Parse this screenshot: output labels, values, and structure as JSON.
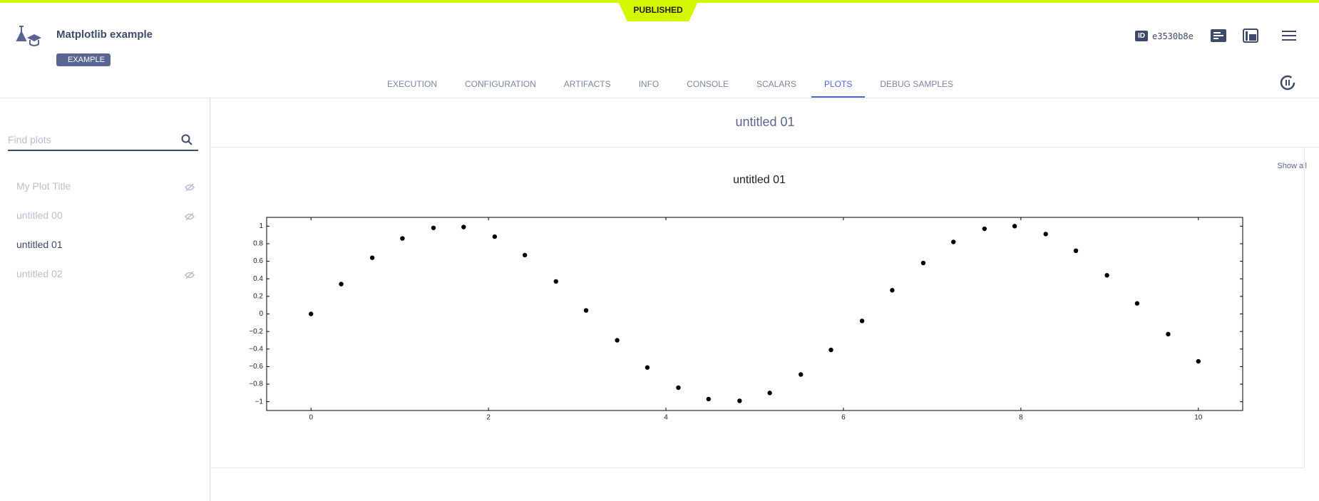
{
  "header": {
    "status": "PUBLISHED",
    "title": "Matplotlib example",
    "tag": "EXAMPLE",
    "id_label": "ID",
    "id": "e3530b8e"
  },
  "tabs": [
    "EXECUTION",
    "CONFIGURATION",
    "ARTIFACTS",
    "INFO",
    "CONSOLE",
    "SCALARS",
    "PLOTS",
    "DEBUG SAMPLES"
  ],
  "active_tab": 6,
  "sidebar": {
    "search_placeholder": "Find plots",
    "show_all": "Show all",
    "plots": [
      {
        "label": "My Plot Title",
        "hidden": true
      },
      {
        "label": "untitled 00",
        "hidden": true
      },
      {
        "label": "untitled 01",
        "hidden": false
      },
      {
        "label": "untitled 02",
        "hidden": true
      }
    ]
  },
  "panel": {
    "title": "untitled 01"
  },
  "chart_data": {
    "type": "scatter",
    "title": "untitled 01",
    "color": "#000000",
    "x": [
      0,
      0.34,
      0.69,
      1.03,
      1.38,
      1.72,
      2.07,
      2.41,
      2.76,
      3.1,
      3.45,
      3.79,
      4.14,
      4.48,
      4.83,
      5.17,
      5.52,
      5.86,
      6.21,
      6.55,
      6.9,
      7.24,
      7.59,
      7.93,
      8.28,
      8.62,
      8.97,
      9.31,
      9.66,
      10
    ],
    "values": [
      0,
      0.34,
      0.64,
      0.86,
      0.98,
      0.99,
      0.88,
      0.67,
      0.37,
      0.04,
      -0.3,
      -0.61,
      -0.84,
      -0.97,
      -0.99,
      -0.9,
      -0.69,
      -0.41,
      -0.08,
      0.27,
      0.58,
      0.82,
      0.97,
      1.0,
      0.91,
      0.72,
      0.44,
      0.12,
      -0.23,
      -0.54
    ],
    "xlim": [
      -0.5,
      10.5
    ],
    "ylim": [
      -1.1,
      1.1
    ],
    "xticks": [
      0,
      2,
      4,
      6,
      8,
      10
    ],
    "yticks": [
      {
        "value": -1,
        "label": "−1"
      },
      {
        "value": -0.8,
        "label": "−0.8"
      },
      {
        "value": -0.6,
        "label": "−0.6"
      },
      {
        "value": -0.4,
        "label": "−0.4"
      },
      {
        "value": -0.2,
        "label": "−0.2"
      },
      0,
      0.2,
      0.4,
      0.6,
      0.8,
      1
    ]
  }
}
